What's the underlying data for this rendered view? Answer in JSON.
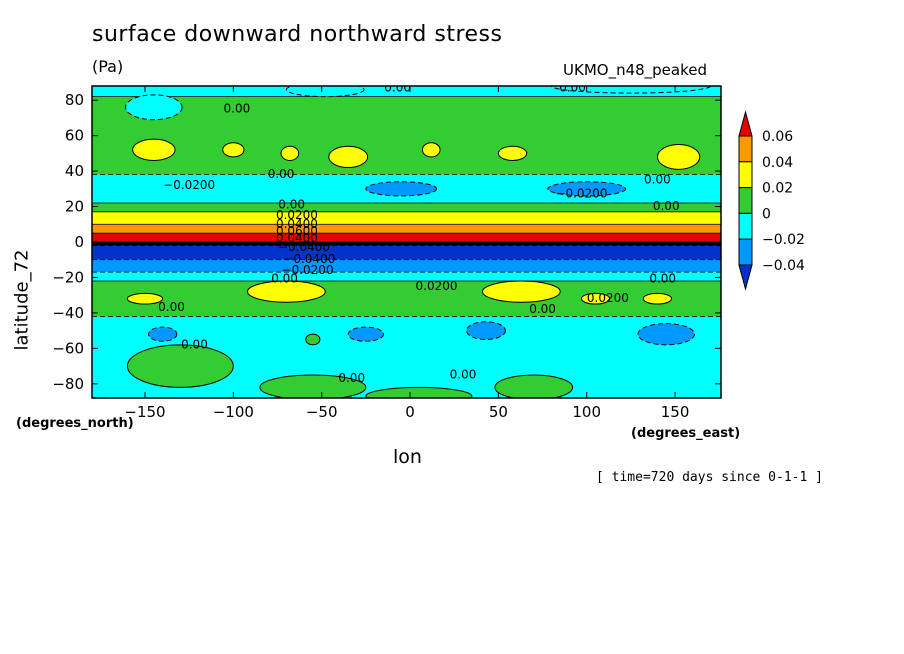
{
  "chart_data": {
    "type": "heatmap",
    "title": "surface downward northward stress",
    "units": "(Pa)",
    "model_label": "UKMO_n48_peaked",
    "xlabel": "lon",
    "ylabel": "latitude_72",
    "x_units": "(degrees_east)",
    "y_units": "(degrees_north)",
    "timestamp": "[ time=720 days since 0-1-1 ]",
    "xlim": [
      -180,
      176
    ],
    "ylim": [
      -88,
      88
    ],
    "x_ticks": [
      -150,
      -100,
      -50,
      0,
      50,
      100,
      150
    ],
    "x_tick_labels": [
      "−150",
      "−100",
      "−50",
      "0",
      "50",
      "100",
      "150"
    ],
    "y_ticks": [
      80,
      60,
      40,
      20,
      0,
      -20,
      -40,
      -60,
      -80
    ],
    "y_tick_labels": [
      "80",
      "60",
      "40",
      "20",
      "0",
      "−20",
      "−40",
      "−60",
      "−80"
    ],
    "colorbar": {
      "levels": [
        0.06,
        0.04,
        0.02,
        0,
        -0.02,
        -0.04
      ],
      "labels": [
        "0.06",
        "0.04",
        "0.02",
        "0",
        "−0.02",
        "−0.04"
      ],
      "colors": [
        "#e60000",
        "#ff9900",
        "#ffff00",
        "#33cc33",
        "#00ffff",
        "#0099ff",
        "#0033cc"
      ]
    },
    "zonal_bands": [
      {
        "lat_from": 88,
        "lat_to": 82,
        "value": 0.005,
        "color": "#00ffff"
      },
      {
        "lat_from": 82,
        "lat_to": 38,
        "value": 0.01,
        "color": "#33cc33"
      },
      {
        "lat_from": 38,
        "lat_to": 22,
        "value": -0.015,
        "color": "#00ffff"
      },
      {
        "lat_from": 22,
        "lat_to": 17,
        "value": 0.01,
        "color": "#33cc33"
      },
      {
        "lat_from": 17,
        "lat_to": 10,
        "value": 0.03,
        "color": "#ffff00"
      },
      {
        "lat_from": 10,
        "lat_to": 5,
        "value": 0.05,
        "color": "#ff9900"
      },
      {
        "lat_from": 5,
        "lat_to": 0,
        "value": 0.07,
        "color": "#e60000"
      },
      {
        "lat_from": 0,
        "lat_to": -2,
        "value": 0.0,
        "color": "#000000"
      },
      {
        "lat_from": -2,
        "lat_to": -10,
        "value": -0.05,
        "color": "#0033cc"
      },
      {
        "lat_from": -10,
        "lat_to": -17,
        "value": -0.03,
        "color": "#0099ff"
      },
      {
        "lat_from": -17,
        "lat_to": -22,
        "value": -0.01,
        "color": "#00ffff"
      },
      {
        "lat_from": -22,
        "lat_to": -42,
        "value": 0.01,
        "color": "#33cc33"
      },
      {
        "lat_from": -42,
        "lat_to": -88,
        "value": -0.01,
        "color": "#00ffff"
      }
    ],
    "patches": [
      {
        "lon": -145,
        "lat": 52,
        "rx": 12,
        "ry": 6,
        "color": "#ffff00",
        "value": 0.025
      },
      {
        "lon": -100,
        "lat": 52,
        "rx": 6,
        "ry": 4,
        "color": "#ffff00",
        "value": 0.025
      },
      {
        "lon": -68,
        "lat": 50,
        "rx": 5,
        "ry": 4,
        "color": "#ffff00",
        "value": 0.025
      },
      {
        "lon": -35,
        "lat": 48,
        "rx": 11,
        "ry": 6,
        "color": "#ffff00",
        "value": 0.025
      },
      {
        "lon": 12,
        "lat": 52,
        "rx": 5,
        "ry": 4,
        "color": "#ffff00",
        "value": 0.025
      },
      {
        "lon": 58,
        "lat": 50,
        "rx": 8,
        "ry": 4,
        "color": "#ffff00",
        "value": 0.025
      },
      {
        "lon": 152,
        "lat": 48,
        "rx": 12,
        "ry": 7,
        "color": "#ffff00",
        "value": 0.025
      },
      {
        "lon": -70,
        "lat": -28,
        "rx": 22,
        "ry": 6,
        "color": "#ffff00",
        "value": 0.025
      },
      {
        "lon": 63,
        "lat": -28,
        "rx": 22,
        "ry": 6,
        "color": "#ffff00",
        "value": 0.025
      },
      {
        "lon": -150,
        "lat": -32,
        "rx": 10,
        "ry": 3,
        "color": "#ffff00",
        "value": 0.025
      },
      {
        "lon": 105,
        "lat": -32,
        "rx": 8,
        "ry": 3,
        "color": "#ffff00",
        "value": 0.025
      },
      {
        "lon": 140,
        "lat": -32,
        "rx": 8,
        "ry": 3,
        "color": "#ffff00",
        "value": 0.025
      },
      {
        "lon": -145,
        "lat": 76,
        "rx": 16,
        "ry": 7,
        "color": "#00ffff",
        "value": -0.01
      },
      {
        "lon": -5,
        "lat": 30,
        "rx": 20,
        "ry": 4,
        "color": "#0099ff",
        "value": -0.025
      },
      {
        "lon": 100,
        "lat": 30,
        "rx": 22,
        "ry": 4,
        "color": "#0099ff",
        "value": -0.025
      },
      {
        "lon": -140,
        "lat": -52,
        "rx": 8,
        "ry": 4,
        "color": "#0099ff",
        "value": -0.025
      },
      {
        "lon": -25,
        "lat": -52,
        "rx": 10,
        "ry": 4,
        "color": "#0099ff",
        "value": -0.025
      },
      {
        "lon": 43,
        "lat": -50,
        "rx": 11,
        "ry": 5,
        "color": "#0099ff",
        "value": -0.025
      },
      {
        "lon": 145,
        "lat": -52,
        "rx": 16,
        "ry": 6,
        "color": "#0099ff",
        "value": -0.025
      },
      {
        "lon": -130,
        "lat": -70,
        "rx": 30,
        "ry": 12,
        "color": "#33cc33",
        "value": 0.005
      },
      {
        "lon": -55,
        "lat": -82,
        "rx": 30,
        "ry": 7,
        "color": "#33cc33",
        "value": 0.005
      },
      {
        "lon": 5,
        "lat": -87,
        "rx": 30,
        "ry": 5,
        "color": "#33cc33",
        "value": 0.005
      },
      {
        "lon": 70,
        "lat": -82,
        "rx": 22,
        "ry": 7,
        "color": "#33cc33",
        "value": 0.005
      },
      {
        "lon": -55,
        "lat": -55,
        "rx": 4,
        "ry": 3,
        "color": "#33cc33",
        "value": 0.005
      },
      {
        "lon": -48,
        "lat": 86,
        "rx": 22,
        "ry": 4,
        "color": "#00ffff",
        "value": -0.005
      },
      {
        "lon": 125,
        "lat": 88,
        "rx": 45,
        "ry": 4,
        "color": "#00ffff",
        "value": -0.005
      }
    ],
    "contour_labels": [
      {
        "text": "0.00",
        "lon": -98,
        "lat": 75
      },
      {
        "text": "0.00",
        "lon": -7,
        "lat": 87
      },
      {
        "text": "0.00",
        "lon": 92,
        "lat": 87
      },
      {
        "text": "0.00",
        "lon": -73,
        "lat": 38
      },
      {
        "text": "0.00",
        "lon": 140,
        "lat": 35
      },
      {
        "text": "0.00",
        "lon": 145,
        "lat": 20
      },
      {
        "text": "−0.0200",
        "lon": -125,
        "lat": 32
      },
      {
        "text": "−0.0200",
        "lon": 97,
        "lat": 27
      },
      {
        "text": "0.00",
        "lon": -67,
        "lat": 21
      },
      {
        "text": "0.0200",
        "lon": -64,
        "lat": 15
      },
      {
        "text": "0.0400",
        "lon": -64,
        "lat": 10
      },
      {
        "text": "0.0600",
        "lon": -64,
        "lat": 6
      },
      {
        "text": "0.0400",
        "lon": -64,
        "lat": 2
      },
      {
        "text": "−0.0400",
        "lon": -60,
        "lat": -3
      },
      {
        "text": "−0.0400",
        "lon": -57,
        "lat": -10
      },
      {
        "text": "−0.0200",
        "lon": -58,
        "lat": -16
      },
      {
        "text": "0.00",
        "lon": -71,
        "lat": -21
      },
      {
        "text": "0.0200",
        "lon": 15,
        "lat": -25
      },
      {
        "text": "0.00",
        "lon": 143,
        "lat": -21
      },
      {
        "text": "0.0200",
        "lon": 112,
        "lat": -32
      },
      {
        "text": "0.00",
        "lon": -135,
        "lat": -37
      },
      {
        "text": "0.00",
        "lon": 75,
        "lat": -38
      },
      {
        "text": "0.00",
        "lon": -122,
        "lat": -58
      },
      {
        "text": "0.00",
        "lon": -33,
        "lat": -77
      },
      {
        "text": "0.00",
        "lon": 30,
        "lat": -75
      }
    ]
  }
}
